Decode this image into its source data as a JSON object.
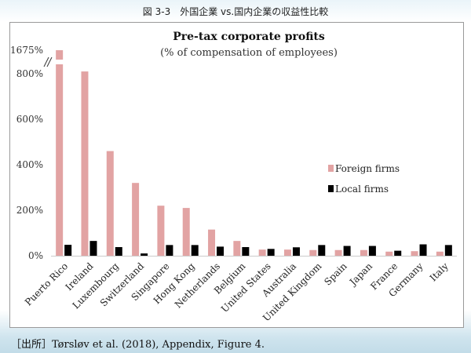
{
  "figure_caption": "図 3-3　外国企業 vs.国内企業の収益性比較",
  "source_note": "［出所］Tørsløv et al. (2018), Appendix, Figure 4.",
  "chart_data": {
    "type": "bar",
    "title": "Pre-tax corporate profits",
    "subtitle": "(% of compensation of employees)",
    "categories": [
      "Puerto Rico",
      "Ireland",
      "Luxembourg",
      "Switzerland",
      "Singapore",
      "Hong Kong",
      "Netherlands",
      "Belgium",
      "United States",
      "Australia",
      "United Kingdom",
      "Spain",
      "Japan",
      "France",
      "Germany",
      "Italy"
    ],
    "series": [
      {
        "name": "Foreign firms",
        "color": "#e2a3a3",
        "values": [
          1675,
          810,
          460,
          320,
          220,
          210,
          115,
          65,
          27,
          27,
          25,
          25,
          25,
          18,
          20,
          18
        ]
      },
      {
        "name": "Local firms",
        "color": "#000000",
        "values": [
          48,
          65,
          38,
          10,
          47,
          47,
          40,
          38,
          30,
          37,
          47,
          43,
          43,
          22,
          50,
          47
        ]
      }
    ],
    "y_ticks": [
      {
        "value": 0,
        "label": "0%"
      },
      {
        "value": 200,
        "label": "200%"
      },
      {
        "value": 400,
        "label": "400%"
      },
      {
        "value": 600,
        "label": "600%"
      },
      {
        "value": 800,
        "label": "800%"
      },
      {
        "value": 1675,
        "label": "1675%"
      }
    ],
    "ylim": [
      0,
      900
    ],
    "axis_break": true,
    "grid": false,
    "legend_position": "right"
  }
}
